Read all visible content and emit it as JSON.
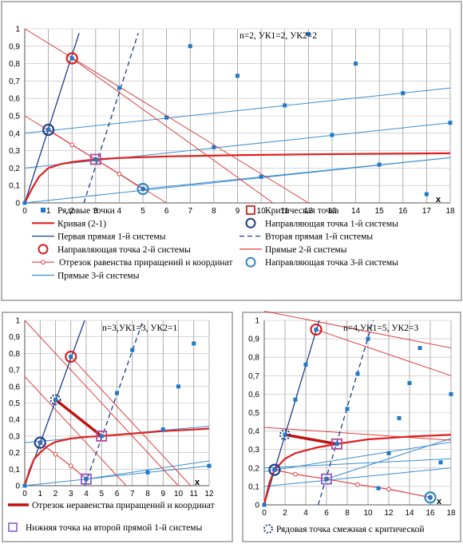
{
  "chart_data": [
    {
      "type": "scatter",
      "annotation": "n=2, УК1=2, УК2=2",
      "xlabel": "x",
      "ylabel": "",
      "xlim": [
        0,
        18
      ],
      "ylim": [
        0,
        1
      ],
      "x_ticks": [
        "0",
        "1",
        "2",
        "3",
        "4",
        "5",
        "6",
        "7",
        "8",
        "9",
        "10",
        "11",
        "12",
        "13",
        "14",
        "15",
        "16",
        "17",
        "18"
      ],
      "y_ticks": [
        "0",
        "0,1",
        "0,2",
        "0,3",
        "0,4",
        "0,5",
        "0,6",
        "0,7",
        "0,8",
        "0,9",
        "1"
      ],
      "grid": "vertical",
      "legend_position": "bottom",
      "row_points": [
        [
          0,
          0
        ],
        [
          1,
          0.42
        ],
        [
          2,
          0.83
        ],
        [
          3,
          0.25
        ],
        [
          4,
          0.66
        ],
        [
          5,
          0.08
        ],
        [
          6,
          0.49
        ],
        [
          7,
          0.9
        ],
        [
          8,
          0.32
        ],
        [
          9,
          0.73
        ],
        [
          10,
          0.15
        ],
        [
          11,
          0.56
        ],
        [
          12,
          0.97
        ],
        [
          13,
          0.39
        ],
        [
          14,
          0.8
        ],
        [
          15,
          0.22
        ],
        [
          16,
          0.63
        ],
        [
          17,
          0.05
        ],
        [
          18,
          0.46
        ]
      ],
      "critical_point": [
        3,
        0.25
      ],
      "guide_points_1": [
        [
          1,
          0.42
        ]
      ],
      "guide_points_2": [
        [
          2,
          0.83
        ]
      ],
      "guide_points_3": [
        [
          5,
          0.08
        ]
      ],
      "curve_2_1": [
        [
          0,
          0
        ],
        [
          0.3,
          0.08
        ],
        [
          0.6,
          0.15
        ],
        [
          1,
          0.2
        ],
        [
          1.5,
          0.222
        ],
        [
          2,
          0.235
        ],
        [
          3,
          0.25
        ],
        [
          4,
          0.258
        ],
        [
          6,
          0.267
        ],
        [
          9,
          0.274
        ],
        [
          12,
          0.279
        ],
        [
          15,
          0.282
        ],
        [
          18,
          0.285
        ]
      ],
      "first_line_1": [
        [
          0,
          0
        ],
        [
          2.3,
          0.975
        ]
      ],
      "second_line_1": [
        [
          2.5,
          0
        ],
        [
          4.8,
          0.975
        ]
      ],
      "lines_2": [
        [
          [
            0,
            1
          ],
          [
            12,
            0
          ]
        ],
        [
          [
            0,
            0.5
          ],
          [
            6,
            0
          ]
        ],
        [
          [
            2,
            0.83
          ],
          [
            10.5,
            0
          ]
        ]
      ],
      "equality_segment": [
        [
          1,
          0.42
        ],
        [
          2,
          0.333
        ],
        [
          3,
          0.25
        ],
        [
          4,
          0.166
        ],
        [
          5,
          0.08
        ]
      ],
      "lines_3": [
        [
          [
            0,
            0.2
          ],
          [
            18,
            0.46
          ]
        ],
        [
          [
            0,
            0.4
          ],
          [
            18,
            0.66
          ]
        ],
        [
          [
            5,
            0.08
          ],
          [
            18,
            0.26
          ]
        ],
        [
          [
            0,
            0
          ],
          [
            18,
            0.26
          ]
        ]
      ],
      "legend": [
        {
          "label": "Рядовые точки"
        },
        {
          "label": "Критическая точка"
        },
        {
          "label": "Кривая (2-1)"
        },
        {
          "label": "Направляющая точка 1-й системы"
        },
        {
          "label": "Первая прямая 1-й системы"
        },
        {
          "label": "Вторая прямая 1-й системы"
        },
        {
          "label": "Направляющая точка 2-й системы"
        },
        {
          "label": "Прямые 2-й системы"
        },
        {
          "label": "Отрезок равенства приращений и координат"
        },
        {
          "label": "Направляющая точка 3-й системы"
        },
        {
          "label": "Прямые 3-й системы"
        }
      ],
      "colors": {
        "row": "#1f78c8",
        "critical": "#d42020",
        "curve": "#e02020",
        "line1": "#1f3e8a",
        "line2": "#e04040",
        "line3": "#3a8ed0",
        "guide1": "#1f3e8a",
        "guide3": "#2f86c8"
      }
    },
    {
      "type": "scatter",
      "annotation": "n=3,УК1=3, УК2=1",
      "xlabel": "x",
      "ylabel": "",
      "xlim": [
        0,
        12
      ],
      "ylim": [
        0,
        1
      ],
      "x_ticks": [
        "0",
        "1",
        "2",
        "3",
        "4",
        "5",
        "6",
        "7",
        "8",
        "9",
        "10",
        "11",
        "12"
      ],
      "y_ticks": [
        "0",
        "0,1",
        "0,2",
        "0,3",
        "0,4",
        "0,5",
        "0,6",
        "0,7",
        "0,8",
        "0,9",
        "1"
      ],
      "grid": "vertical",
      "legend_position": "bottom",
      "row_points": [
        [
          0,
          0
        ],
        [
          1,
          0.26
        ],
        [
          2,
          0.52
        ],
        [
          3,
          0.78
        ],
        [
          4,
          0.04
        ],
        [
          5,
          0.3
        ],
        [
          6,
          0.56
        ],
        [
          7,
          0.82
        ],
        [
          8,
          0.08
        ],
        [
          9,
          0.34
        ],
        [
          10,
          0.6
        ],
        [
          11,
          0.86
        ],
        [
          12,
          0.12
        ]
      ],
      "critical_point": [
        5,
        0.3
      ],
      "guide_points_1": [
        [
          1,
          0.26
        ]
      ],
      "guide_points_2": [
        [
          3,
          0.78
        ]
      ],
      "adjacent_point": [
        [
          2,
          0.52
        ]
      ],
      "lower_point": [
        [
          4,
          0.04
        ]
      ],
      "curve_2_1": [
        [
          0,
          0
        ],
        [
          0.3,
          0.09
        ],
        [
          0.6,
          0.16
        ],
        [
          1,
          0.2
        ],
        [
          1.5,
          0.24
        ],
        [
          2,
          0.265
        ],
        [
          3,
          0.285
        ],
        [
          4,
          0.295
        ],
        [
          5,
          0.3
        ],
        [
          7,
          0.315
        ],
        [
          9,
          0.33
        ],
        [
          12,
          0.345
        ]
      ],
      "first_line_1": [
        [
          0,
          0
        ],
        [
          3.9,
          1
        ]
      ],
      "second_line_1": [
        [
          3.9,
          0
        ],
        [
          7.7,
          1
        ]
      ],
      "lines_2": [
        [
          [
            0,
            1
          ],
          [
            10,
            0
          ]
        ],
        [
          [
            0,
            0.66
          ],
          [
            6.6,
            0
          ]
        ],
        [
          [
            3,
            0.78
          ],
          [
            10.8,
            0
          ]
        ]
      ],
      "equality_segment": [
        [
          1,
          0.26
        ],
        [
          2,
          0.19
        ],
        [
          3,
          0.12
        ],
        [
          4,
          0.04
        ]
      ],
      "inequality_segment": [
        [
          2,
          0.52
        ],
        [
          5,
          0.3
        ]
      ],
      "lines_3": [
        [
          [
            0,
            0.26
          ],
          [
            12,
            0.36
          ]
        ],
        [
          [
            0,
            0
          ],
          [
            12,
            0.12
          ]
        ],
        [
          [
            4,
            0.04
          ],
          [
            12,
            0.15
          ]
        ]
      ],
      "legend": [
        {
          "label": "Отрезок неравенства приращений и координат"
        },
        {
          "label": "Нижняя точка на второй прямой 1-й системы"
        }
      ],
      "colors": {
        "row": "#1f78c8",
        "critical": "#d42020",
        "curve": "#e02020",
        "line1": "#1f3e8a",
        "line2": "#e04040",
        "line3": "#3a8ed0",
        "ineq": "#c01010",
        "lower": "#8a5cc8"
      }
    },
    {
      "type": "scatter",
      "annotation": "n=4,УК1=5, УК2=3",
      "xlabel": "x",
      "ylabel": "",
      "xlim": [
        0,
        18
      ],
      "ylim": [
        0,
        1
      ],
      "x_ticks": [
        "0",
        "2",
        "4",
        "6",
        "8",
        "10",
        "12",
        "14",
        "16",
        "18"
      ],
      "y_ticks": [
        "0",
        "0,1",
        "0,2",
        "0,3",
        "0,4",
        "0,5",
        "0,6",
        "0,7",
        "0,8",
        "0,9",
        "1"
      ],
      "grid": "vertical",
      "legend_position": "bottom",
      "row_points": [
        [
          0,
          0
        ],
        [
          1,
          0.19
        ],
        [
          2,
          0.38
        ],
        [
          3,
          0.57
        ],
        [
          4,
          0.76
        ],
        [
          5,
          0.95
        ],
        [
          6,
          0.14
        ],
        [
          7,
          0.33
        ],
        [
          8,
          0.52
        ],
        [
          9,
          0.71
        ],
        [
          10,
          0.9
        ],
        [
          11,
          0.09
        ],
        [
          12,
          0.28
        ],
        [
          13,
          0.47
        ],
        [
          14,
          0.66
        ],
        [
          15,
          0.85
        ],
        [
          16,
          0.04
        ],
        [
          17,
          0.23
        ],
        [
          18,
          0.6
        ]
      ],
      "critical_point": [
        7,
        0.33
      ],
      "guide_points_1": [
        [
          1,
          0.19
        ]
      ],
      "guide_points_2": [
        [
          5,
          0.95
        ]
      ],
      "guide_points_3": [
        [
          16,
          0.04
        ]
      ],
      "adjacent_point": [
        [
          2,
          0.38
        ]
      ],
      "lower_point": [
        [
          6,
          0.14
        ]
      ],
      "curve_2_1": [
        [
          0,
          0
        ],
        [
          0.5,
          0.12
        ],
        [
          1,
          0.19
        ],
        [
          2,
          0.25
        ],
        [
          3,
          0.28
        ],
        [
          5,
          0.31
        ],
        [
          7,
          0.33
        ],
        [
          10,
          0.355
        ],
        [
          14,
          0.37
        ],
        [
          18,
          0.38
        ]
      ],
      "first_line_1": [
        [
          0,
          0
        ],
        [
          5.3,
          1
        ]
      ],
      "second_line_1": [
        [
          5.2,
          0
        ],
        [
          10.5,
          1
        ]
      ],
      "lines_2": [
        [
          [
            0,
            1.05
          ],
          [
            18,
            0.85
          ]
        ],
        [
          [
            5,
            0.95
          ],
          [
            18,
            0.7
          ]
        ],
        [
          [
            0,
            0.42
          ],
          [
            18,
            0.35
          ]
        ]
      ],
      "equality_segment": [
        [
          1,
          0.19
        ],
        [
          3,
          0.166
        ],
        [
          6,
          0.14
        ],
        [
          9,
          0.11
        ],
        [
          12,
          0.085
        ],
        [
          16,
          0.04
        ]
      ],
      "inequality_segment": [
        [
          2,
          0.38
        ],
        [
          7,
          0.33
        ]
      ],
      "lines_3": [
        [
          [
            0,
            0.2
          ],
          [
            18,
            0.25
          ]
        ],
        [
          [
            0,
            0.18
          ],
          [
            18,
            0.34
          ]
        ],
        [
          [
            0,
            0.1
          ],
          [
            18,
            0.2
          ]
        ],
        [
          [
            6,
            0.14
          ],
          [
            18,
            0.36
          ]
        ]
      ],
      "legend": [
        {
          "label": "Рядовая точка смежная с критической"
        }
      ],
      "colors": {
        "row": "#1f78c8",
        "critical": "#d42020",
        "curve": "#e02020",
        "line1": "#1f3e8a",
        "line2": "#e04040",
        "line3": "#3a8ed0",
        "ineq": "#c01010",
        "lower": "#8a5cc8",
        "adjacent": "#1f3e8a"
      }
    }
  ]
}
